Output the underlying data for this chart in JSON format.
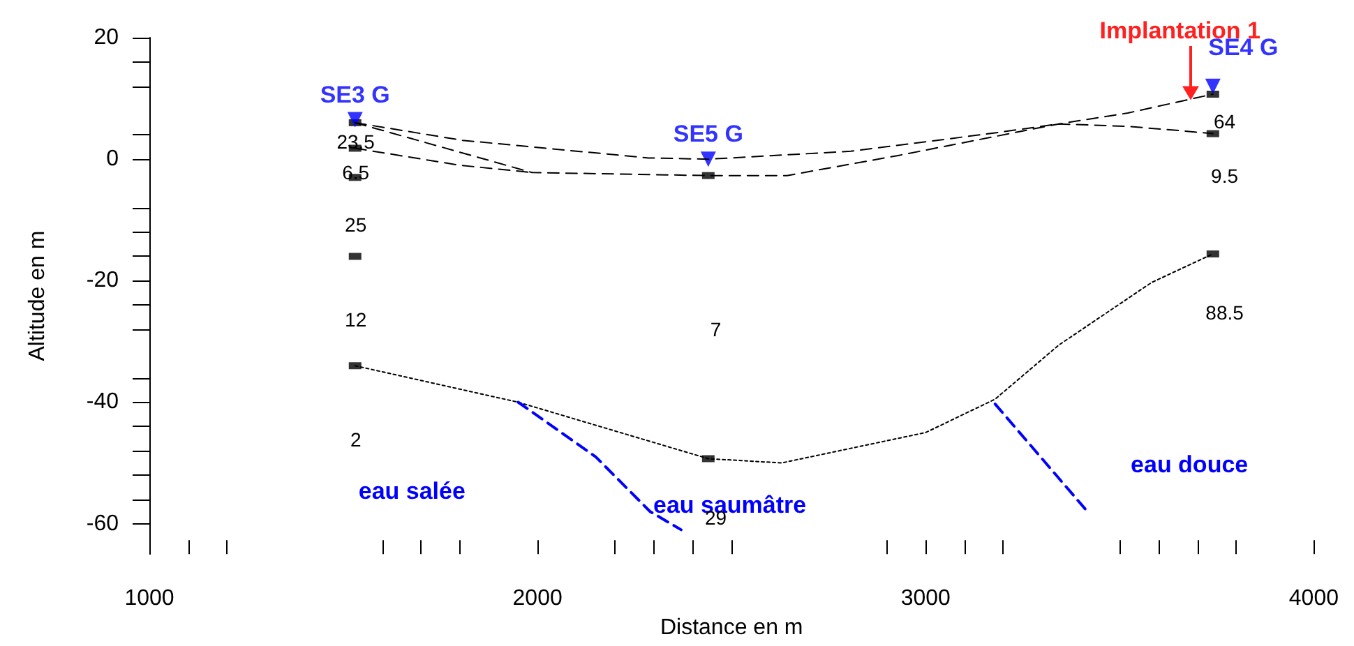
{
  "chart_data": {
    "type": "line",
    "xlabel": "Distance en m",
    "ylabel": "Altitude en m",
    "xlim": [
      1000,
      4000
    ],
    "ylim": [
      -65,
      20
    ],
    "xticks": [
      1000,
      {
        "value": 1100,
        "label": null
      },
      {
        "value": 1200,
        "label": null
      },
      {
        "value": 1600,
        "label": null
      },
      {
        "value": 1700,
        "label": null
      },
      {
        "value": 1800,
        "label": null
      },
      2000,
      {
        "value": 2200,
        "label": null
      },
      {
        "value": 2300,
        "label": null
      },
      {
        "value": 2400,
        "label": null
      },
      {
        "value": 2500,
        "label": null
      },
      {
        "value": 2900,
        "label": null
      },
      3000,
      {
        "value": 3100,
        "label": null
      },
      {
        "value": 3200,
        "label": null
      },
      {
        "value": 3500,
        "label": null
      },
      {
        "value": 3600,
        "label": null
      },
      {
        "value": 3700,
        "label": null
      },
      {
        "value": 3800,
        "label": null
      },
      4000
    ],
    "yticks": [
      20,
      {
        "value": 16,
        "label": null
      },
      {
        "value": 12,
        "label": null
      },
      {
        "value": 4,
        "label": null
      },
      0,
      {
        "value": -8,
        "label": null
      },
      {
        "value": -12,
        "label": null
      },
      {
        "value": -16,
        "label": null
      },
      -20,
      {
        "value": -24,
        "label": null
      },
      {
        "value": -28,
        "label": null
      },
      {
        "value": -36,
        "label": null
      },
      -40,
      {
        "value": -44,
        "label": null
      },
      {
        "value": -48,
        "label": null
      },
      {
        "value": -52,
        "label": null
      },
      {
        "value": -56,
        "label": null
      },
      -60
    ],
    "grid": false,
    "legend": false,
    "series": [
      {
        "color": "#000000",
        "line_style": "dashed",
        "marker": "none",
        "x": [
          1530,
          1807,
          2286,
          2440,
          2807,
          3164,
          3343,
          3521,
          3654,
          3740
        ],
        "values": [
          6,
          3.1,
          0.2,
          0,
          1.3,
          4.2,
          5.8,
          5.4,
          4.7,
          4.2
        ]
      },
      {
        "color": "#000000",
        "line_style": "dashed",
        "marker": "none",
        "x": [
          1530,
          1986,
          2440,
          2643,
          2929,
          3343,
          3521,
          3740
        ],
        "values": [
          6,
          -2.2,
          -2.7,
          -2.7,
          0.6,
          5.8,
          7.6,
          10.7
        ]
      },
      {
        "color": "#000000",
        "line_style": "dashed",
        "marker": "none",
        "x": [
          1530,
          1800,
          1986
        ],
        "values": [
          1.8,
          -1,
          -2.2
        ]
      },
      {
        "color": "#000000",
        "line_style": "dotted",
        "marker": "none",
        "x": [
          1530,
          1950,
          2440,
          2629,
          3000,
          3179,
          3343,
          3582,
          3740
        ],
        "values": [
          -34,
          -40,
          -49.3,
          -50,
          -45,
          -39.5,
          -30.6,
          -20.3,
          -15.6
        ]
      },
      {
        "color": "#0000ff",
        "line_style": "dashed",
        "marker": "none",
        "x": [
          1950,
          2150,
          2290,
          2370
        ],
        "values": [
          -40,
          -49,
          -58,
          -61
        ]
      },
      {
        "color": "#0000ff",
        "line_style": "dashed",
        "marker": "none",
        "x": [
          3179,
          3414
        ],
        "values": [
          -40.3,
          -57.8
        ]
      },
      {
        "type": "scatter",
        "color": "#000000",
        "marker": "square",
        "x": [
          1530,
          1530,
          1530,
          1530,
          1530,
          2440,
          2440,
          3740,
          3740,
          3740
        ],
        "values": [
          6,
          1.8,
          -3,
          -16,
          -34,
          -2.7,
          -49.3,
          10.7,
          4.2,
          -15.6
        ]
      },
      {
        "type": "scatter",
        "name": "SE3 G",
        "color": "#0000ff",
        "marker": "triangle",
        "x": [
          1530
        ],
        "values": [
          6.5
        ]
      },
      {
        "type": "scatter",
        "name": "SE5 G",
        "color": "#0000ff",
        "marker": "triangle",
        "x": [
          2440
        ],
        "values": [
          0
        ]
      },
      {
        "type": "scatter",
        "name": "SE4 G",
        "color": "#0000ff",
        "marker": "triangle",
        "x": [
          3740
        ],
        "values": [
          12
        ]
      }
    ],
    "annotations": [
      "eau salée",
      "eau saumâtre",
      "eau douce",
      "23.5",
      "6.5",
      "25",
      "12",
      "2",
      "7",
      "29",
      "64",
      "9.5",
      "88.5",
      "Implantation 1"
    ]
  }
}
